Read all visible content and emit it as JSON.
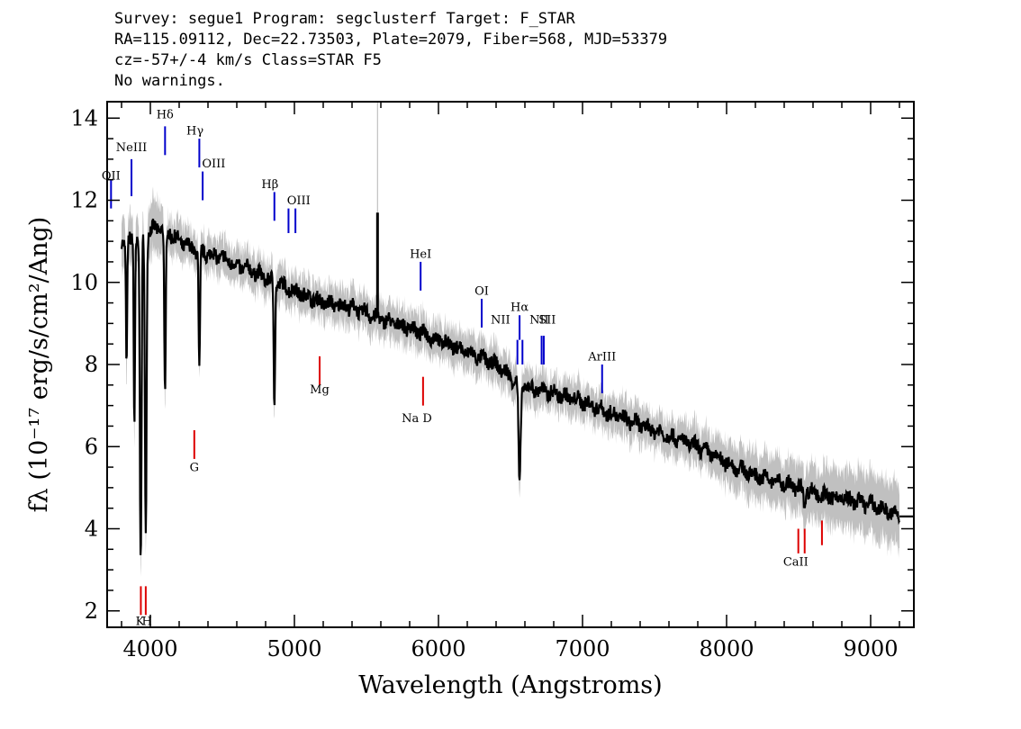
{
  "header": {
    "line1": "Survey: segue1 Program: segclusterf Target: F_STAR",
    "line2": "RA=115.09112, Dec=22.73503, Plate=2079, Fiber=568, MJD=53379",
    "line3": "cz=-57+/-4 km/s Class=STAR F5",
    "line4": "No warnings."
  },
  "chart_data": {
    "type": "line",
    "xlabel": "Wavelength (Angstroms)",
    "ylabel": "fλ (10⁻¹⁷ erg/s/cm²/Ang)",
    "xlim": [
      3700,
      9300
    ],
    "ylim": [
      1.6,
      14.4
    ],
    "xticks": [
      4000,
      5000,
      6000,
      7000,
      8000,
      9000
    ],
    "yticks": [
      2,
      4,
      6,
      8,
      10,
      12,
      14
    ],
    "colors": {
      "flux": "#000000",
      "error": "#c0c0c0",
      "emission": "#0000cc",
      "absorption": "#dd0000"
    },
    "continuum": [
      [
        3800,
        11.0
      ],
      [
        3900,
        11.0
      ],
      [
        4000,
        11.3
      ],
      [
        4100,
        11.3
      ],
      [
        4200,
        11.0
      ],
      [
        4300,
        10.8
      ],
      [
        4400,
        10.7
      ],
      [
        4500,
        10.6
      ],
      [
        4600,
        10.4
      ],
      [
        4700,
        10.3
      ],
      [
        4800,
        10.1
      ],
      [
        5000,
        9.8
      ],
      [
        5200,
        9.5
      ],
      [
        5400,
        9.4
      ],
      [
        5600,
        9.1
      ],
      [
        5800,
        8.9
      ],
      [
        6000,
        8.6
      ],
      [
        6200,
        8.3
      ],
      [
        6400,
        8.0
      ],
      [
        6500,
        7.7
      ],
      [
        6600,
        7.45
      ],
      [
        6800,
        7.3
      ],
      [
        7000,
        7.1
      ],
      [
        7200,
        6.8
      ],
      [
        7500,
        6.4
      ],
      [
        7800,
        6.0
      ],
      [
        8000,
        5.6
      ],
      [
        8200,
        5.3
      ],
      [
        8500,
        5.0
      ],
      [
        8700,
        4.8
      ],
      [
        9000,
        4.6
      ],
      [
        9200,
        4.3
      ]
    ],
    "absorption_dips": [
      [
        3835,
        8.0,
        6
      ],
      [
        3889,
        6.6,
        6
      ],
      [
        3933,
        3.0,
        8
      ],
      [
        3968,
        3.8,
        8
      ],
      [
        4102,
        7.1,
        7
      ],
      [
        4340,
        7.8,
        7
      ],
      [
        4861,
        7.1,
        7
      ],
      [
        6563,
        5.0,
        10
      ],
      [
        8542,
        4.4,
        6
      ],
      [
        8662,
        4.7,
        6
      ]
    ],
    "spike": [
      5577,
      11.7
    ],
    "emission_lines": [
      {
        "label": "OII",
        "x": 3727,
        "y1": 11.8,
        "y2": 12.5,
        "lx": 3727,
        "ly": 12.5
      },
      {
        "label": "NeIII",
        "x": 3869,
        "y1": 12.1,
        "y2": 13.0,
        "lx": 3869,
        "ly": 13.2
      },
      {
        "label": "Hδ",
        "x": 4102,
        "y1": 13.1,
        "y2": 13.8,
        "lx": 4102,
        "ly": 14.0
      },
      {
        "label": "Hγ",
        "x": 4340,
        "y1": 12.8,
        "y2": 13.5,
        "lx": 4310,
        "ly": 13.6
      },
      {
        "label": "OIII",
        "x": 4363,
        "y1": 12.0,
        "y2": 12.7,
        "lx": 4440,
        "ly": 12.8
      },
      {
        "label": "Hβ",
        "x": 4861,
        "y1": 11.5,
        "y2": 12.2,
        "lx": 4830,
        "ly": 12.3
      },
      {
        "label": "OIII",
        "x": 4959,
        "y1": 11.2,
        "y2": 11.8,
        "lx": 5030,
        "ly": 11.9
      },
      {
        "label": "",
        "x": 5007,
        "y1": 11.2,
        "y2": 11.8,
        "lx": 5007,
        "ly": 11.8
      },
      {
        "label": "HeI",
        "x": 5876,
        "y1": 9.8,
        "y2": 10.5,
        "lx": 5876,
        "ly": 10.6
      },
      {
        "label": "OI",
        "x": 6300,
        "y1": 8.9,
        "y2": 9.6,
        "lx": 6300,
        "ly": 9.7
      },
      {
        "label": "NII",
        "x": 6548,
        "y1": 8.0,
        "y2": 8.6,
        "lx": 6430,
        "ly": 9.0
      },
      {
        "label": "Hα",
        "x": 6563,
        "y1": 8.6,
        "y2": 9.2,
        "lx": 6563,
        "ly": 9.3
      },
      {
        "label": "",
        "x": 6583,
        "y1": 8.0,
        "y2": 8.6,
        "lx": 6583,
        "ly": 8.6
      },
      {
        "label": "NII",
        "x": 6716,
        "y1": 8.0,
        "y2": 8.7,
        "lx": 6700,
        "ly": 9.0
      },
      {
        "label": "SII",
        "x": 6731,
        "y1": 8.0,
        "y2": 8.7,
        "lx": 6755,
        "ly": 9.0
      },
      {
        "label": "ArIII",
        "x": 7136,
        "y1": 7.3,
        "y2": 8.0,
        "lx": 7136,
        "ly": 8.1
      }
    ],
    "absorption_lines": [
      {
        "label": "Mg",
        "x": 5175,
        "y1": 7.5,
        "y2": 8.2,
        "lx": 5175,
        "ly": 7.3
      },
      {
        "label": "G",
        "x": 4305,
        "y1": 5.7,
        "y2": 6.4,
        "lx": 4305,
        "ly": 5.4
      },
      {
        "label": "Na D",
        "x": 5893,
        "y1": 7.0,
        "y2": 7.7,
        "lx": 5850,
        "ly": 6.6
      },
      {
        "label": "",
        "x": 8498,
        "y1": 3.4,
        "y2": 4.0,
        "lx": 8498,
        "ly": 4.0
      },
      {
        "label": "CaII",
        "x": 8542,
        "y1": 3.4,
        "y2": 4.0,
        "lx": 8480,
        "ly": 3.1
      },
      {
        "label": "",
        "x": 8662,
        "y1": 3.6,
        "y2": 4.2,
        "lx": 8662,
        "ly": 4.2
      },
      {
        "label": "K",
        "x": 3934,
        "y1": 1.9,
        "y2": 2.6,
        "lx": 3928,
        "ly": 1.65
      },
      {
        "label": "H",
        "x": 3968,
        "y1": 1.9,
        "y2": 2.6,
        "lx": 3976,
        "ly": 1.65
      }
    ]
  }
}
